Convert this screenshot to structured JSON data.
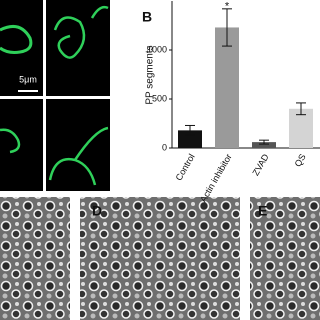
{
  "panel_labels": {
    "b": "B",
    "d": "D",
    "e": "E"
  },
  "scale_bar": "5μm",
  "chart_data": {
    "type": "bar",
    "y_label": "PP segments",
    "categories": [
      "Control",
      "Actin inhibitor",
      "ZVAD",
      "QS"
    ],
    "values": [
      180,
      1230,
      60,
      400
    ],
    "errors": [
      50,
      190,
      20,
      60
    ],
    "colors": [
      "#111111",
      "#9a9a9a",
      "#555555",
      "#d4d4d4"
    ],
    "annotation": "*",
    "ylim": [
      0,
      1500
    ],
    "yticks": [
      0,
      500,
      1000
    ]
  }
}
